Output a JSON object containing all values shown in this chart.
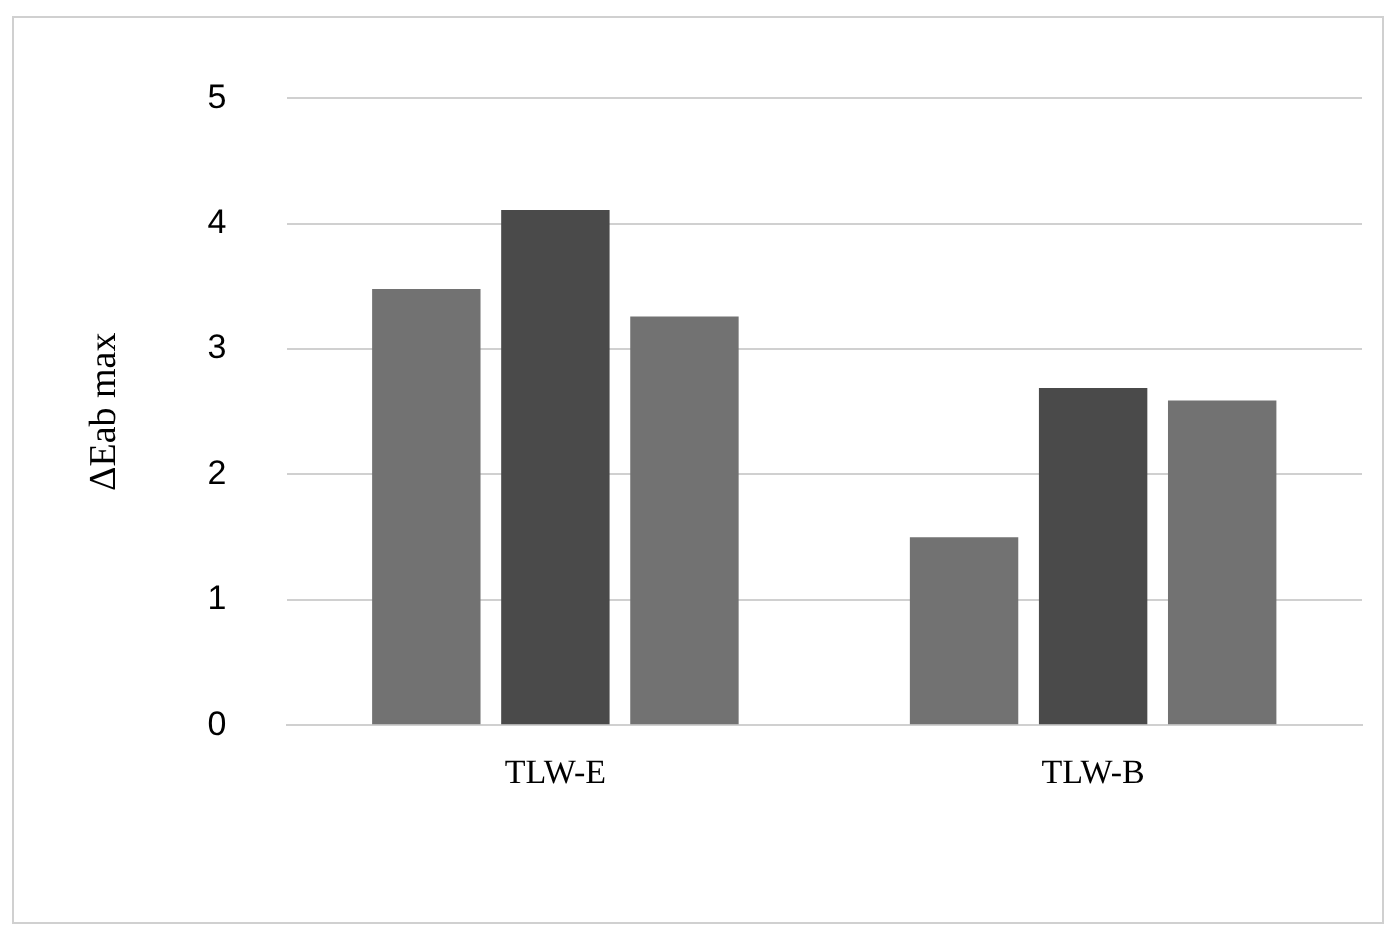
{
  "chart_data": {
    "type": "bar",
    "ylabel": "ΔEab max",
    "categories": [
      "TLW-E",
      "TLW-B"
    ],
    "series": [
      {
        "color": "#727272",
        "values": [
          3.48,
          1.5
        ]
      },
      {
        "color": "#4a4a4a",
        "values": [
          4.11,
          2.69
        ]
      },
      {
        "color": "#727272",
        "values": [
          3.26,
          2.59
        ]
      }
    ],
    "ylim": [
      0,
      5
    ],
    "yticks": [
      0,
      1,
      2,
      3,
      4,
      5
    ],
    "grid": "y",
    "legend": false
  }
}
